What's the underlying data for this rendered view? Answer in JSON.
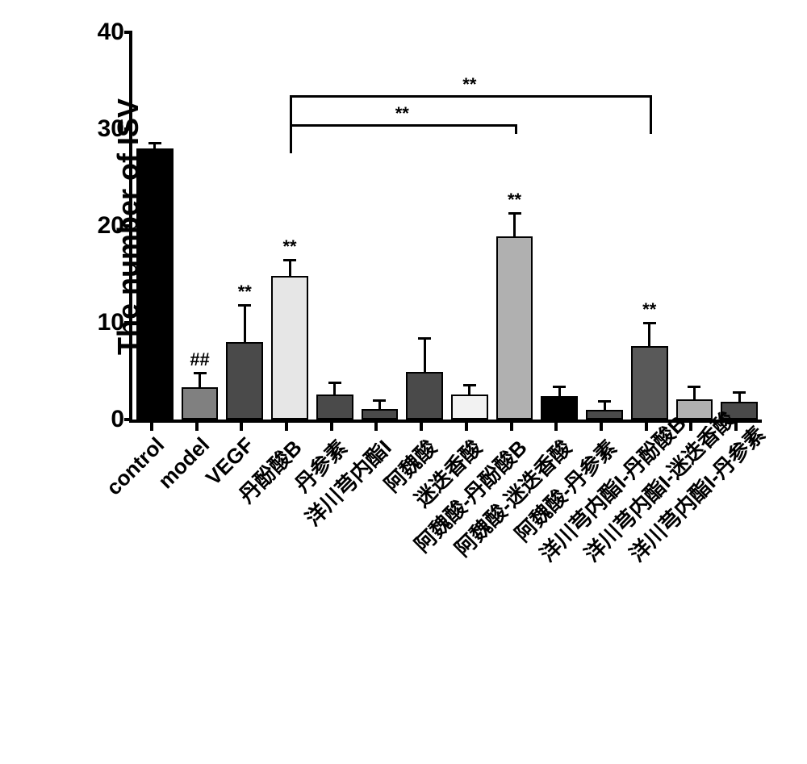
{
  "chart": {
    "type": "bar",
    "ylabel": "The number of ISV",
    "ylabel_fontsize": 36,
    "xlabel_fontsize": 26,
    "ytick_fontsize": 30,
    "ylim": [
      0,
      40
    ],
    "ytick_step": 10,
    "yticks": [
      0,
      10,
      20,
      30,
      40
    ],
    "background_color": "#ffffff",
    "axis_color": "#000000",
    "axis_width": 4,
    "bar_border_color": "#000000",
    "bar_border_width": 2,
    "bar_width_ratio": 0.82,
    "error_cap_width": 16,
    "categories": [
      "control",
      "model",
      "VEGF",
      "丹酚酸B",
      "丹参素",
      "洋川芎内酯I",
      "阿魏酸",
      "迷迭香酸",
      "阿魏酸-丹酚酸B",
      "阿魏酸-迷迭香酸",
      "阿魏酸-丹参素",
      "洋川芎内酯I-丹酚酸B",
      "洋川芎内酯I-迷迭香酸",
      "洋川芎内酯I-丹参素"
    ],
    "values": [
      28.0,
      3.3,
      8.0,
      14.8,
      2.6,
      1.1,
      4.9,
      2.6,
      18.9,
      2.4,
      1.0,
      7.6,
      2.1,
      1.8
    ],
    "errors": [
      0.7,
      1.6,
      3.9,
      1.8,
      1.3,
      1.0,
      3.6,
      1.1,
      2.5,
      1.1,
      1.0,
      2.5,
      1.4,
      1.1
    ],
    "bar_colors": [
      "#000000",
      "#808080",
      "#4a4a4a",
      "#e6e6e6",
      "#4a4a4a",
      "#4a4a4a",
      "#4a4a4a",
      "#f2f2f2",
      "#b0b0b0",
      "#000000",
      "#4a4a4a",
      "#595959",
      "#b0b0b0",
      "#4a4a4a"
    ],
    "significance_above": [
      null,
      "##",
      "**",
      "**",
      null,
      null,
      null,
      null,
      "**",
      null,
      null,
      "**",
      null,
      null
    ],
    "comparison_brackets": [
      {
        "from_index": 3,
        "to_index": 8,
        "y": 30.5,
        "drop1": 3.0,
        "drop2": 1.0,
        "label": "**"
      },
      {
        "from_index": 3,
        "to_index": 11,
        "y": 33.5,
        "drop1": 6.0,
        "drop2": 4.0,
        "label": "**"
      }
    ]
  }
}
